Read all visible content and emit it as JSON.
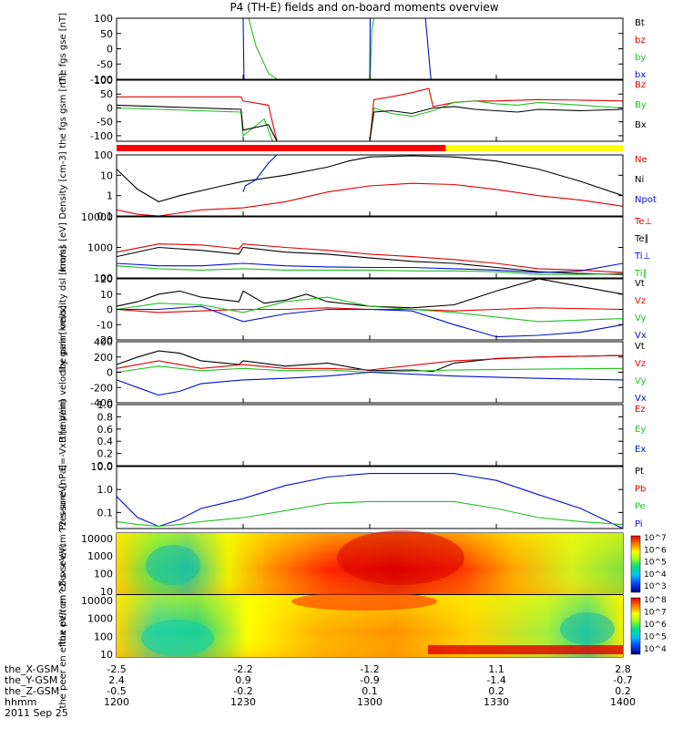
{
  "title": "P4 (TH-E) fields and on-board moments overview",
  "colors": {
    "black": "#000000",
    "red": "#e00000",
    "green": "#20c020",
    "blue": "#0010d0",
    "yellow": "#ffff00",
    "orbit_red": "#ff0000"
  },
  "chart_data": [
    {
      "id": "fgs-gse",
      "type": "line",
      "ylabel": "the fgs gse [nT]",
      "ylim": [
        -100,
        100
      ],
      "yticks": [
        "100",
        "50",
        "0",
        "-50",
        "-100"
      ],
      "legend": [
        "Bt",
        "bz",
        "by",
        "bx"
      ],
      "series": [
        {
          "name": "by",
          "color_key": "green",
          "x": [
            1231.3,
            1233,
            1236,
            1238,
            1239.5
          ],
          "y": [
            100,
            10,
            -80,
            -100,
            -100
          ]
        },
        {
          "name": "by",
          "color_key": "green",
          "x": [
            1300.1,
            1300.5,
            1301
          ],
          "y": [
            -100,
            60,
            100
          ]
        },
        {
          "name": "bx",
          "color_key": "blue",
          "x": [
            1230,
            1230.2
          ],
          "y": [
            100,
            -100
          ]
        },
        {
          "name": "bx",
          "color_key": "blue",
          "x": [
            1300,
            1300.1
          ],
          "y": [
            -100,
            100
          ]
        },
        {
          "name": "bx",
          "color_key": "blue",
          "x": [
            1313.2,
            1314.5
          ],
          "y": [
            100,
            -100
          ]
        }
      ]
    },
    {
      "id": "fgs-gsm",
      "type": "line",
      "ylabel": "the fgs gsm [nT]",
      "ylim": [
        -120,
        100
      ],
      "yticks": [
        "100",
        "50",
        "0",
        "-50",
        "-100"
      ],
      "legend": [
        "Bz",
        "By",
        "Bx"
      ],
      "series": [
        {
          "name": "Bz",
          "color_key": "red",
          "x": [
            1200,
            1210,
            1220,
            1229.5,
            1230,
            1236,
            1238
          ],
          "y": [
            40,
            40,
            40,
            40,
            25,
            10,
            -120
          ]
        },
        {
          "name": "Bz",
          "color_key": "red",
          "x": [
            1300,
            1301,
            1305,
            1310,
            1314,
            1315,
            1320,
            1325,
            1330,
            1340,
            1350,
            1360,
            1400
          ],
          "y": [
            -120,
            30,
            40,
            55,
            70,
            5,
            20,
            25,
            25,
            30,
            28,
            25,
            25
          ]
        },
        {
          "name": "By",
          "color_key": "green",
          "x": [
            1200,
            1210,
            1220,
            1229.5,
            1230,
            1235,
            1237
          ],
          "y": [
            0,
            -5,
            -10,
            -15,
            -100,
            -40,
            -120
          ]
        },
        {
          "name": "By",
          "color_key": "green",
          "x": [
            1300,
            1301,
            1305,
            1310,
            1315,
            1320,
            1325,
            1330,
            1335,
            1340,
            1350,
            1400
          ],
          "y": [
            -120,
            0,
            -20,
            -30,
            -10,
            20,
            25,
            15,
            10,
            20,
            10,
            0
          ]
        },
        {
          "name": "Bx",
          "color_key": "black",
          "x": [
            1200,
            1210,
            1220,
            1229.5,
            1230,
            1236,
            1238
          ],
          "y": [
            10,
            5,
            0,
            -5,
            -80,
            -60,
            -120
          ]
        },
        {
          "name": "Bx",
          "color_key": "black",
          "x": [
            1300,
            1301,
            1305,
            1310,
            1315,
            1320,
            1325,
            1330,
            1335,
            1340,
            1350,
            1400
          ],
          "y": [
            -120,
            -15,
            -10,
            -20,
            0,
            5,
            -5,
            -10,
            -15,
            -5,
            -10,
            -5
          ]
        }
      ]
    },
    {
      "id": "density",
      "type": "line",
      "ylabel": "Density [cm-3]",
      "yscale": "log",
      "ylim": [
        0.1,
        100
      ],
      "yticks": [
        "100",
        "10",
        "1",
        "0.1"
      ],
      "legend": [
        "Ne",
        "Ni",
        "Npot"
      ],
      "series": [
        {
          "name": "Ni",
          "color_key": "black",
          "x": [
            1200,
            1205,
            1210,
            1215,
            1225,
            1230,
            1240,
            1250,
            1255,
            1300,
            1310,
            1320,
            1330,
            1340,
            1350,
            1400
          ],
          "y": [
            20,
            2,
            0.5,
            1,
            3,
            5,
            10,
            25,
            50,
            80,
            90,
            80,
            50,
            20,
            5,
            1
          ]
        },
        {
          "name": "Ne",
          "color_key": "red",
          "x": [
            1200,
            1205,
            1210,
            1220,
            1230,
            1240,
            1250,
            1300,
            1310,
            1320,
            1330,
            1340,
            1350,
            1400
          ],
          "y": [
            0.2,
            0.12,
            0.1,
            0.2,
            0.25,
            0.5,
            1.5,
            3,
            4,
            3.5,
            2,
            1,
            0.6,
            0.3
          ]
        },
        {
          "name": "Npot",
          "color_key": "blue",
          "x": [
            1230,
            1230.5,
            1233,
            1236,
            1238
          ],
          "y": [
            1.5,
            3,
            6,
            40,
            100
          ]
        }
      ]
    },
    {
      "id": "temperature",
      "type": "line",
      "ylabel": "moms [eV]",
      "yscale": "log",
      "ylim": [
        100,
        10000
      ],
      "yticks": [
        "10000",
        "1000",
        "100"
      ],
      "legend": [
        "Te⊥",
        "Te∥",
        "Ti⊥",
        "Ti∥"
      ],
      "series": [
        {
          "name": "Te⊥",
          "color_key": "red",
          "x": [
            1200,
            1210,
            1220,
            1229,
            1230,
            1240,
            1250,
            1300,
            1310,
            1320,
            1330,
            1340,
            1350,
            1400
          ],
          "y": [
            700,
            1300,
            1200,
            900,
            1300,
            1000,
            800,
            600,
            500,
            400,
            300,
            200,
            180,
            150
          ]
        },
        {
          "name": "Te∥",
          "color_key": "black",
          "x": [
            1200,
            1210,
            1220,
            1229,
            1230,
            1240,
            1250,
            1300,
            1310,
            1320,
            1330,
            1340,
            1350,
            1400
          ],
          "y": [
            500,
            1000,
            800,
            600,
            1000,
            700,
            600,
            450,
            350,
            300,
            220,
            160,
            140,
            130
          ]
        },
        {
          "name": "Ti⊥",
          "color_key": "blue",
          "x": [
            1200,
            1210,
            1220,
            1230,
            1240,
            1250,
            1300,
            1310,
            1320,
            1330,
            1340,
            1350,
            1400
          ],
          "y": [
            300,
            250,
            250,
            300,
            250,
            230,
            220,
            220,
            200,
            180,
            150,
            170,
            300
          ]
        },
        {
          "name": "Ti∥",
          "color_key": "green",
          "x": [
            1200,
            1210,
            1220,
            1230,
            1240,
            1250,
            1300,
            1310,
            1320,
            1330,
            1340,
            1350,
            1400
          ],
          "y": [
            250,
            200,
            180,
            200,
            180,
            180,
            180,
            170,
            170,
            160,
            130,
            130,
            140
          ]
        }
      ]
    },
    {
      "id": "velocity-dsl",
      "type": "line",
      "ylabel": "the peim velocity dsl [km/s]",
      "ylim": [
        -20,
        20
      ],
      "yticks": [
        "20",
        "10",
        "0",
        "-10",
        "-20"
      ],
      "legend": [
        "Vt",
        "Vz",
        "Vy",
        "Vx"
      ],
      "series": [
        {
          "name": "Vt",
          "color_key": "black",
          "x": [
            1200,
            1205,
            1210,
            1215,
            1220,
            1229,
            1230,
            1235,
            1240,
            1245,
            1250,
            1300,
            1310,
            1320,
            1330,
            1340,
            1350,
            1400
          ],
          "y": [
            2,
            5,
            10,
            12,
            8,
            5,
            12,
            4,
            6,
            10,
            5,
            2,
            1,
            3,
            12,
            20,
            15,
            10
          ]
        },
        {
          "name": "Vz",
          "color_key": "red",
          "x": [
            1200,
            1210,
            1220,
            1230,
            1240,
            1250,
            1300,
            1310,
            1320,
            1330,
            1340,
            1400
          ],
          "y": [
            0,
            -2,
            -1,
            0,
            0,
            1,
            0,
            0,
            -1,
            0,
            1,
            0
          ]
        },
        {
          "name": "Vy",
          "color_key": "green",
          "x": [
            1200,
            1210,
            1220,
            1230,
            1240,
            1250,
            1300,
            1310,
            1320,
            1330,
            1340,
            1400
          ],
          "y": [
            0,
            4,
            3,
            -2,
            5,
            8,
            2,
            0,
            -2,
            -5,
            -8,
            -6
          ]
        },
        {
          "name": "Vx",
          "color_key": "blue",
          "x": [
            1200,
            1210,
            1220,
            1230,
            1240,
            1250,
            1300,
            1310,
            1320,
            1330,
            1340,
            1350,
            1400
          ],
          "y": [
            0,
            0,
            2,
            -8,
            -3,
            0,
            0,
            -1,
            -10,
            -18,
            -17,
            -15,
            -10
          ]
        }
      ]
    },
    {
      "id": "velocity-gsm",
      "type": "line",
      "ylabel": "the peim velocity gsm [km/s]",
      "ylim": [
        -400,
        400
      ],
      "yticks": [
        "400",
        "200",
        "0",
        "-200",
        "-400"
      ],
      "legend": [
        "Vt",
        "Vz",
        "Vy",
        "Vx"
      ],
      "series": [
        {
          "name": "Vt",
          "color_key": "black",
          "x": [
            1200,
            1205,
            1210,
            1215,
            1220,
            1229,
            1230,
            1240,
            1250,
            1300,
            1310,
            1315,
            1320,
            1330,
            1340,
            1400
          ],
          "y": [
            100,
            200,
            280,
            250,
            150,
            100,
            150,
            80,
            120,
            20,
            30,
            10,
            120,
            180,
            200,
            220
          ]
        },
        {
          "name": "Vz",
          "color_key": "red",
          "x": [
            1200,
            1210,
            1220,
            1230,
            1240,
            1250,
            1300,
            1320,
            1340,
            1400
          ],
          "y": [
            50,
            150,
            50,
            100,
            50,
            50,
            30,
            150,
            200,
            220
          ]
        },
        {
          "name": "Vy",
          "color_key": "green",
          "x": [
            1200,
            1210,
            1220,
            1230,
            1240,
            1250,
            1300,
            1320,
            1340,
            1400
          ],
          "y": [
            0,
            80,
            20,
            50,
            20,
            30,
            0,
            30,
            40,
            50
          ]
        },
        {
          "name": "Vx",
          "color_key": "blue",
          "x": [
            1200,
            1205,
            1210,
            1215,
            1220,
            1230,
            1240,
            1250,
            1300,
            1320,
            1340,
            1400
          ],
          "y": [
            -100,
            -200,
            -300,
            -250,
            -150,
            -100,
            -80,
            -50,
            0,
            -50,
            -80,
            -100
          ]
        }
      ]
    },
    {
      "id": "efield",
      "type": "line",
      "ylabel": "E=-VxB [mV/m]",
      "ylim": [
        0,
        1
      ],
      "yticks": [
        "1.0",
        "0.8",
        "0.6",
        "0.4",
        "0.2",
        "0.0"
      ],
      "legend": [
        "Ez",
        "Ey",
        "Ex"
      ],
      "series": []
    },
    {
      "id": "pressure",
      "type": "line",
      "ylabel": "Pressure [nPa]",
      "yscale": "log",
      "ylim": [
        0.02,
        10
      ],
      "yticks": [
        "10.0",
        "1.0",
        "0.1"
      ],
      "legend": [
        "Pt",
        "Pb",
        "Pe",
        "Pi"
      ],
      "series": [
        {
          "name": "Pi",
          "color_key": "blue",
          "x": [
            1200,
            1205,
            1210,
            1215,
            1220,
            1230,
            1240,
            1250,
            1300,
            1310,
            1320,
            1330,
            1340,
            1350,
            1400
          ],
          "y": [
            0.5,
            0.06,
            0.025,
            0.05,
            0.15,
            0.4,
            1.5,
            3.5,
            5,
            5,
            5,
            2.5,
            0.6,
            0.15,
            0.02
          ]
        },
        {
          "name": "Pe",
          "color_key": "green",
          "x": [
            1200,
            1205,
            1210,
            1215,
            1220,
            1230,
            1240,
            1250,
            1300,
            1310,
            1320,
            1330,
            1340,
            1350,
            1400
          ],
          "y": [
            0.04,
            0.03,
            0.025,
            0.03,
            0.04,
            0.06,
            0.12,
            0.25,
            0.3,
            0.3,
            0.3,
            0.15,
            0.06,
            0.04,
            0.03
          ]
        }
      ]
    },
    {
      "id": "ion-spectrogram",
      "type": "heatmap",
      "ylabel": "the peir en eflux eV/(cm^2-s-sr-eV)",
      "yscale": "log",
      "ylim": [
        7,
        20000
      ],
      "yticks": [
        "10000",
        "1000",
        "100",
        "10"
      ],
      "colorbar_ticks": [
        "10^7",
        "10^6",
        "10^5",
        "10^4",
        "10^3"
      ]
    },
    {
      "id": "electron-spectrogram",
      "type": "heatmap",
      "ylabel": "the peer en eflux eV/(cm^2-s-sr-eV)",
      "yscale": "log",
      "ylim": [
        7,
        20000
      ],
      "yticks": [
        "10000",
        "1000",
        "100",
        "10"
      ],
      "colorbar_ticks": [
        "10^8",
        "10^7",
        "10^6",
        "10^5",
        "10^4"
      ]
    }
  ],
  "orbit_bar": [
    {
      "from": 1200,
      "to": 1318,
      "color_key": "orbit_red"
    },
    {
      "from": 1318,
      "to": 1400,
      "color_key": "yellow"
    }
  ],
  "x_axis": {
    "minutes": [
      1200,
      1230,
      1300,
      1330,
      1400
    ],
    "rows": [
      {
        "label": "the_X-GSM",
        "values": [
          "-2.5",
          "-2.2",
          "-1.2",
          "1.1",
          "2.8"
        ]
      },
      {
        "label": "the_Y-GSM",
        "values": [
          "2.4",
          "0.9",
          "-0.9",
          "-1.4",
          "-0.7"
        ]
      },
      {
        "label": "the_Z-GSM",
        "values": [
          "-0.5",
          "-0.2",
          "0.1",
          "0.2",
          "0.2"
        ]
      },
      {
        "label": "hhmm",
        "values": [
          "1200",
          "1230",
          "1300",
          "1330",
          "1400"
        ]
      }
    ],
    "date": "2011 Sep 25"
  }
}
